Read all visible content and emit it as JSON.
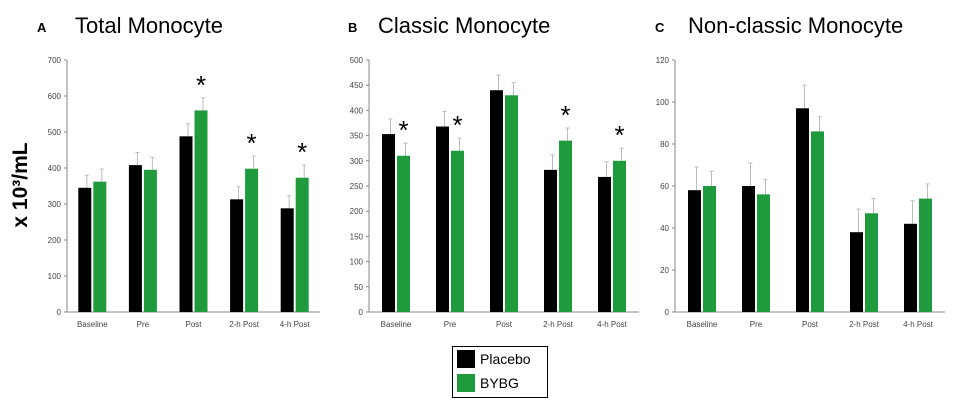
{
  "shared_ylabel": "x 10³/mL",
  "colors": {
    "placebo": "#000000",
    "bybg": "#1f9a3c",
    "error_bar": "#bbbbbb"
  },
  "legend": {
    "placebo_label": "Placebo",
    "bybg_label": "BYBG"
  },
  "chart_data": [
    {
      "type": "bar",
      "panel_letter": "A",
      "title": "Total Monocyte",
      "categories": [
        "Baseline",
        "Pre",
        "Post",
        "2-h Post",
        "4-h Post"
      ],
      "ylim": [
        0,
        700
      ],
      "yticks": [
        0,
        100,
        200,
        300,
        400,
        500,
        600,
        700
      ],
      "series": [
        {
          "name": "Placebo",
          "values": [
            345,
            408,
            488,
            313,
            288
          ],
          "errors": [
            35,
            35,
            35,
            35,
            35
          ]
        },
        {
          "name": "BYBG",
          "values": [
            362,
            395,
            560,
            398,
            373
          ],
          "errors": [
            35,
            35,
            35,
            35,
            35
          ]
        }
      ],
      "significance": [
        "",
        "",
        "*",
        "*",
        "*"
      ],
      "significance_symbol": "*"
    },
    {
      "type": "bar",
      "panel_letter": "B",
      "title": "Classic Monocyte",
      "categories": [
        "Baseline",
        "Pre",
        "Post",
        "2-h Post",
        "4-h Post"
      ],
      "ylim": [
        0,
        500
      ],
      "yticks": [
        0,
        50,
        100,
        150,
        200,
        250,
        300,
        350,
        400,
        450,
        500
      ],
      "series": [
        {
          "name": "Placebo",
          "values": [
            353,
            368,
            440,
            282,
            268
          ],
          "errors": [
            30,
            30,
            30,
            30,
            30
          ]
        },
        {
          "name": "BYBG",
          "values": [
            310,
            320,
            430,
            340,
            300
          ],
          "errors": [
            25,
            25,
            25,
            25,
            25
          ]
        }
      ],
      "significance": [
        "*",
        "*",
        "",
        "*",
        "*"
      ],
      "significance_symbol": "*"
    },
    {
      "type": "bar",
      "panel_letter": "C",
      "title": "Non-classic Monocyte",
      "categories": [
        "Baseline",
        "Pre",
        "Post",
        "2-h Post",
        "4-h Post"
      ],
      "ylim": [
        0,
        120
      ],
      "yticks": [
        0,
        20,
        40,
        60,
        80,
        100,
        120
      ],
      "series": [
        {
          "name": "Placebo",
          "values": [
            58,
            60,
            97,
            38,
            42
          ],
          "errors": [
            11,
            11,
            11,
            11,
            11
          ]
        },
        {
          "name": "BYBG",
          "values": [
            60,
            56,
            86,
            47,
            54
          ],
          "errors": [
            7,
            7,
            7,
            7,
            7
          ]
        }
      ],
      "significance": [
        "",
        "",
        "",
        "",
        ""
      ],
      "significance_symbol": "*"
    }
  ]
}
